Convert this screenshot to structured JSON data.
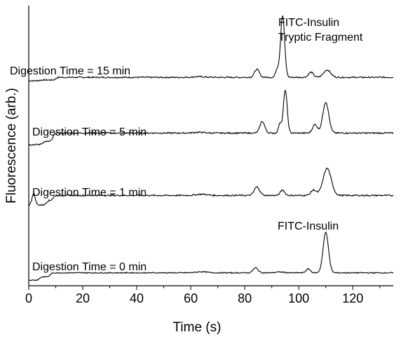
{
  "chart_data": {
    "type": "line",
    "xlabel": "Time (s)",
    "ylabel": "Fluorescence (arb.)",
    "xlim": [
      0,
      135
    ],
    "xticks": [
      0,
      20,
      40,
      60,
      80,
      100,
      120
    ],
    "xtick_labels": [
      "0",
      "20",
      "40",
      "60",
      "80",
      "100",
      "120"
    ],
    "y_ticks_shown": false,
    "series": [
      {
        "name": "Digestion Time = 15 min",
        "baseline": 0.0,
        "steps": [
          [
            4,
            0.05
          ],
          [
            10,
            0.18
          ]
        ],
        "peaks": [
          {
            "t": 63,
            "h": 0.05,
            "w": 2.0
          },
          {
            "t": 84.5,
            "h": 0.55,
            "w": 0.9
          },
          {
            "t": 92.0,
            "h": 0.55,
            "w": 0.6
          },
          {
            "t": 94.0,
            "h": 4.2,
            "w": 0.75
          },
          {
            "t": 104.5,
            "h": 0.35,
            "w": 0.9
          },
          {
            "t": 110.5,
            "h": 0.5,
            "w": 1.3
          }
        ]
      },
      {
        "name": "Digestion Time = 5 min",
        "baseline": 0.0,
        "steps": [
          [
            5,
            0.2
          ],
          [
            9,
            0.55
          ]
        ],
        "peaks": [
          {
            "t": 63,
            "h": 0.05,
            "w": 2.0
          },
          {
            "t": 86.5,
            "h": 0.75,
            "w": 0.9
          },
          {
            "t": 93.0,
            "h": 0.65,
            "w": 0.5
          },
          {
            "t": 95.0,
            "h": 2.8,
            "w": 0.7
          },
          {
            "t": 106.0,
            "h": 0.55,
            "w": 0.9
          },
          {
            "t": 110.0,
            "h": 2.0,
            "w": 1.1
          }
        ]
      },
      {
        "name": "Digestion Time = 1 min",
        "baseline": 0.0,
        "steps": [
          [
            6.5,
            0.3
          ],
          [
            9,
            0.32
          ]
        ],
        "peaks": [
          {
            "t": 1.8,
            "h": 0.75,
            "w": 0.6
          },
          {
            "t": 64,
            "h": 0.08,
            "w": 2.0
          },
          {
            "t": 84.5,
            "h": 0.55,
            "w": 1.0
          },
          {
            "t": 94.0,
            "h": 0.35,
            "w": 0.8
          },
          {
            "t": 105.5,
            "h": 0.35,
            "w": 1.0
          },
          {
            "t": 110.5,
            "h": 1.75,
            "w": 1.5
          }
        ]
      },
      {
        "name": "Digestion Time = 0 min",
        "baseline": 0.0,
        "steps": [
          [
            4,
            0.3
          ],
          [
            8,
            0.35
          ]
        ],
        "peaks": [
          {
            "t": 64,
            "h": 0.1,
            "w": 2.0
          },
          {
            "t": 84.0,
            "h": 0.45,
            "w": 0.9
          },
          {
            "t": 93.0,
            "h": 0.08,
            "w": 1.5
          },
          {
            "t": 103.5,
            "h": 0.35,
            "w": 0.8
          },
          {
            "t": 110.0,
            "h": 3.6,
            "w": 1.0
          }
        ]
      }
    ],
    "annotations": [
      {
        "text": "FITC-Insulin",
        "near_series": 0,
        "near_t": 94
      },
      {
        "text": "Tryptic Fragment",
        "near_series": 0,
        "near_t": 94
      },
      {
        "text": "FITC-Insulin",
        "near_series": 3,
        "near_t": 110
      }
    ]
  }
}
